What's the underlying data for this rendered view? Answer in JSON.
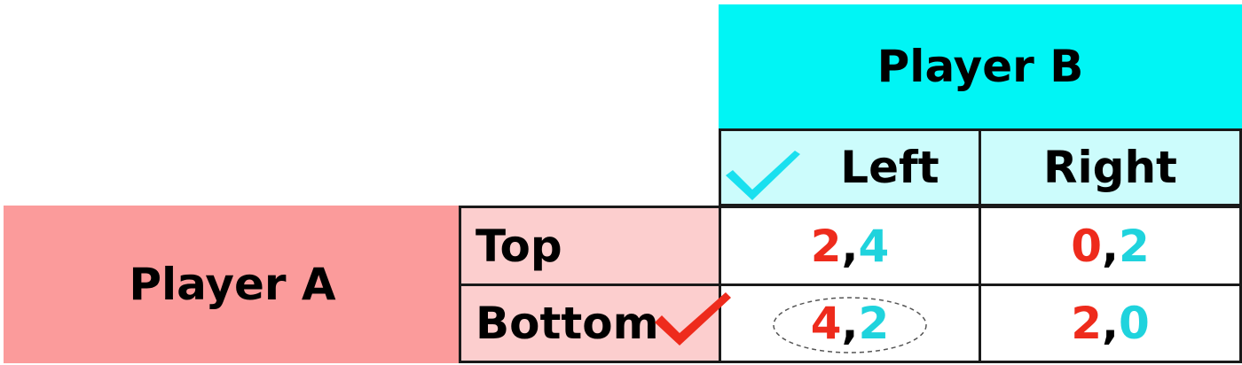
{
  "player_b": {
    "label": "Player B"
  },
  "player_a": {
    "label": "Player A"
  },
  "columns": [
    {
      "label": "Left"
    },
    {
      "label": "Right"
    }
  ],
  "rows": [
    {
      "label": "Top"
    },
    {
      "label": "Bottom"
    }
  ],
  "payoffs": {
    "top_left": {
      "a": "2",
      "b": "4"
    },
    "top_right": {
      "a": "0",
      "b": "2"
    },
    "bottom_left": {
      "a": "4",
      "b": "2"
    },
    "bottom_right": {
      "a": "2",
      "b": "0"
    }
  },
  "separator": ",",
  "colors": {
    "player_b_header": "#00f5f5",
    "column_header": "#ccfcfc",
    "player_a_block": "#fb9b9b",
    "row_header": "#fccece",
    "payoff_a": "#ee2b1c",
    "payoff_b": "#1fd3dd"
  },
  "marks": {
    "player_b_best_response": "check-icon",
    "player_a_best_response": "check-icon",
    "equilibrium": "dashed-ellipse"
  }
}
